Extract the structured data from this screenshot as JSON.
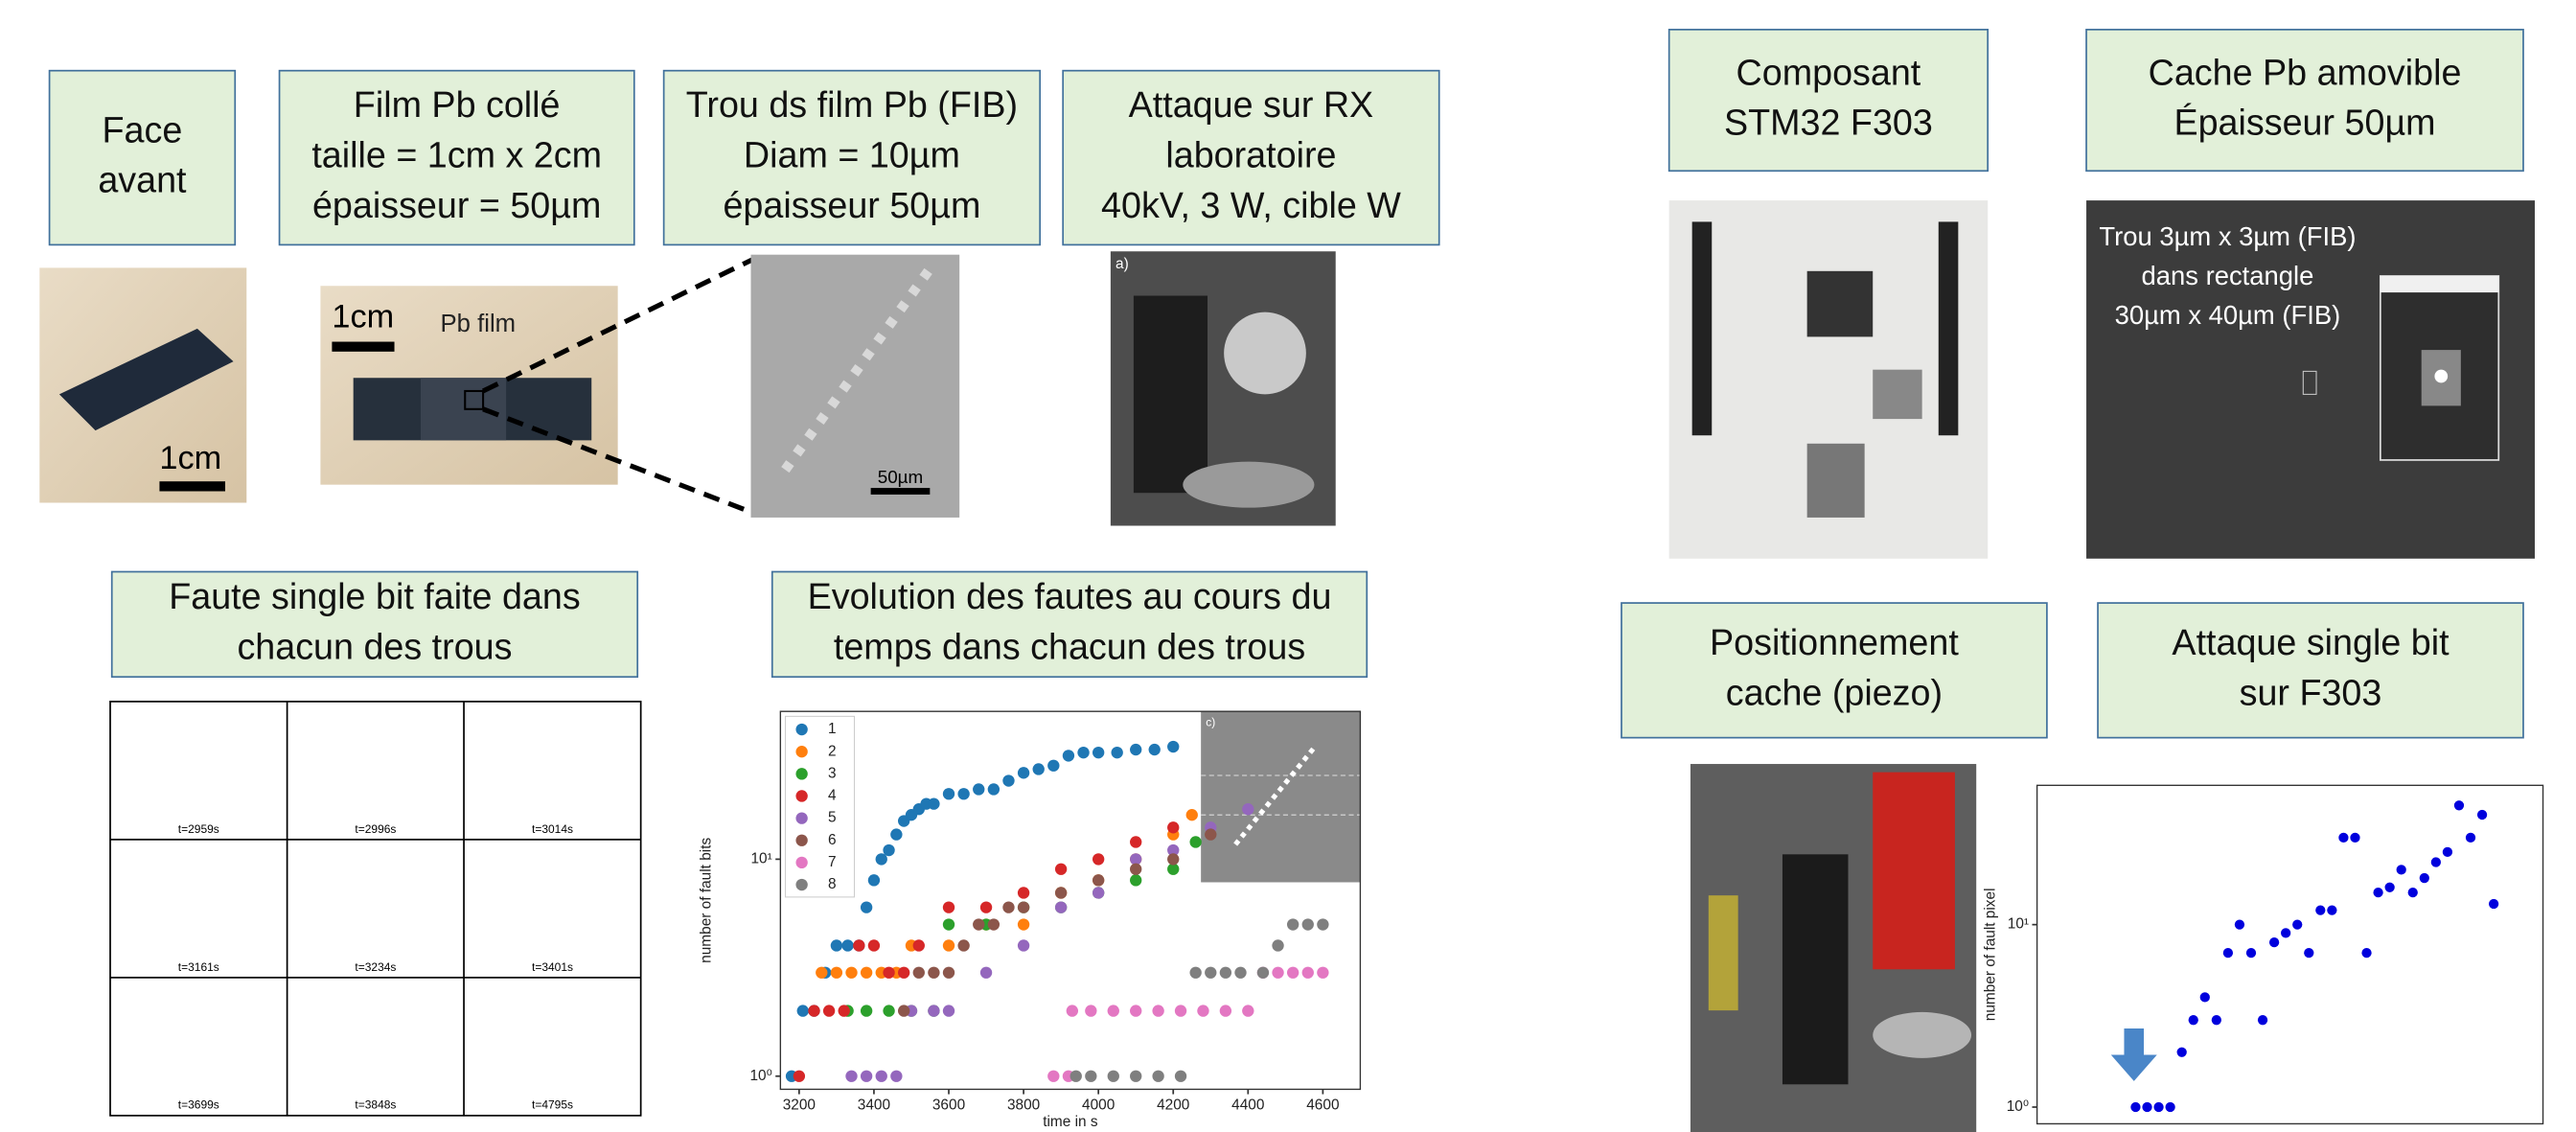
{
  "boxes": [
    {
      "lines": [
        "Face",
        "avant"
      ]
    },
    {
      "lines": [
        "Film Pb collé",
        "taille = 1cm x 2cm",
        "épaisseur = 50µm"
      ]
    },
    {
      "lines": [
        "Trou ds film Pb (FIB)",
        "Diam = 10µm",
        "épaisseur 50µm"
      ]
    },
    {
      "lines": [
        "Attaque sur RX",
        "laboratoire",
        "40kV, 3 W, cible W"
      ]
    },
    {
      "lines": [
        "Composant",
        "STM32 F303"
      ]
    },
    {
      "lines": [
        "Cache Pb amovible",
        "Épaisseur 50µm"
      ]
    },
    {
      "lines": [
        "Faute single bit faite dans",
        "chacun des trous"
      ]
    },
    {
      "lines": [
        "Evolution des fautes au cours du",
        "temps dans chacun des trous"
      ]
    },
    {
      "lines": [
        "Positionnement",
        "cache (piezo)"
      ]
    },
    {
      "lines": [
        "Attaque single bit",
        "sur F303"
      ]
    }
  ],
  "photos": {
    "chip_scale": "1cm",
    "film_scale": "1cm",
    "film_label": "Pb film",
    "fib_scale": "50µm",
    "rx_label": "a)",
    "cache_text": [
      "Trou 3µm x 3µm (FIB)",
      "dans rectangle",
      "30µm x 40µm (FIB)"
    ],
    "inset_label": "c)"
  },
  "fault_grid": {
    "frames": [
      "t=2959s",
      "t=2996s",
      "t=3014s",
      "t=3161s",
      "t=3234s",
      "t=3401s",
      "t=3699s",
      "t=3848s",
      "t=4795s"
    ]
  },
  "chart_data": [
    {
      "type": "scatter",
      "x_label": "time in s",
      "y_label": "number of fault bits",
      "xlim": [
        3150,
        4700
      ],
      "ylim": [
        0.87,
        48
      ],
      "log_y": true,
      "xticks": [
        3200,
        3400,
        3600,
        3800,
        4000,
        4200,
        4400,
        4600
      ],
      "yticks": [
        {
          "value": 1,
          "label": "10⁰"
        },
        {
          "value": 10,
          "label": "10¹"
        }
      ],
      "legend": "upper left",
      "series": [
        {
          "name": "1",
          "color": "#1f77b4",
          "x": [
            3180,
            3210,
            3240,
            3270,
            3300,
            3330,
            3360,
            3380,
            3400,
            3420,
            3440,
            3460,
            3480,
            3500,
            3520,
            3540,
            3560,
            3600,
            3640,
            3680,
            3720,
            3760,
            3800,
            3840,
            3880,
            3920,
            3960,
            4000,
            4050,
            4100,
            4150,
            4200
          ],
          "values": [
            1,
            2,
            2,
            3,
            4,
            4,
            4,
            6,
            8,
            10,
            11,
            13,
            15,
            16,
            17,
            18,
            18,
            20,
            20,
            21,
            21,
            23,
            25,
            26,
            27,
            30,
            31,
            31,
            31,
            32,
            32,
            33
          ]
        },
        {
          "name": "2",
          "color": "#ff7f0e",
          "x": [
            3260,
            3300,
            3340,
            3380,
            3420,
            3460,
            3500,
            3600,
            3700,
            3800,
            3900,
            4000,
            4100,
            4200,
            4250
          ],
          "values": [
            3,
            3,
            3,
            3,
            3,
            3,
            4,
            4,
            5,
            5,
            7,
            8,
            10,
            13,
            16
          ]
        },
        {
          "name": "3",
          "color": "#2ca02c",
          "x": [
            3330,
            3380,
            3440,
            3500,
            3560,
            3600,
            3700,
            3800,
            3900,
            4000,
            4100,
            4200,
            4260
          ],
          "values": [
            2,
            2,
            2,
            2,
            2,
            5,
            5,
            6,
            6,
            7,
            8,
            9,
            12
          ]
        },
        {
          "name": "4",
          "color": "#d62728",
          "x": [
            3200,
            3240,
            3280,
            3320,
            3360,
            3400,
            3440,
            3480,
            3520,
            3600,
            3700,
            3800,
            3900,
            4000,
            4100,
            4200
          ],
          "values": [
            1,
            2,
            2,
            2,
            4,
            4,
            3,
            3,
            4,
            6,
            6,
            7,
            9,
            10,
            12,
            14
          ]
        },
        {
          "name": "5",
          "color": "#9467bd",
          "x": [
            3340,
            3380,
            3420,
            3460,
            3500,
            3560,
            3600,
            3700,
            3800,
            3900,
            4000,
            4100,
            4200,
            4300,
            4400
          ],
          "values": [
            1,
            1,
            1,
            1,
            2,
            2,
            2,
            3,
            4,
            6,
            7,
            10,
            11,
            14,
            17
          ]
        },
        {
          "name": "6",
          "color": "#8c564b",
          "x": [
            3480,
            3520,
            3560,
            3600,
            3640,
            3680,
            3720,
            3760,
            3800,
            3900,
            4000,
            4100,
            4200,
            4300
          ],
          "values": [
            2,
            3,
            3,
            3,
            4,
            5,
            5,
            6,
            6,
            7,
            8,
            9,
            10,
            13
          ]
        },
        {
          "name": "7",
          "color": "#e377c2",
          "x": [
            3880,
            3920,
            3930,
            3980,
            4040,
            4100,
            4160,
            4220,
            4280,
            4340,
            4400,
            4440,
            4480,
            4520,
            4560,
            4600
          ],
          "values": [
            1,
            1,
            2,
            2,
            2,
            2,
            2,
            2,
            2,
            2,
            2,
            3,
            3,
            3,
            3,
            3
          ]
        },
        {
          "name": "8",
          "color": "#7f7f7f",
          "x": [
            3940,
            3980,
            4040,
            4100,
            4160,
            4220,
            4260,
            4300,
            4340,
            4380,
            4440,
            4480,
            4520,
            4560,
            4600
          ],
          "values": [
            1,
            1,
            1,
            1,
            1,
            1,
            3,
            3,
            3,
            3,
            3,
            4,
            5,
            5,
            5
          ]
        }
      ]
    },
    {
      "type": "scatter",
      "y_label": "number of fault pixel",
      "ylim": [
        0.81,
        58
      ],
      "log_y": true,
      "yticks": [
        {
          "value": 1,
          "label": "10⁰"
        },
        {
          "value": 10,
          "label": "10¹"
        }
      ],
      "color": "#0000dd",
      "values": [
        1,
        1,
        1,
        1,
        2,
        3,
        4,
        3,
        7,
        10,
        7,
        3,
        8,
        9,
        10,
        7,
        12,
        12,
        30,
        30,
        7,
        15,
        16,
        20,
        15,
        18,
        22,
        25,
        45,
        30,
        40,
        13
      ]
    }
  ]
}
